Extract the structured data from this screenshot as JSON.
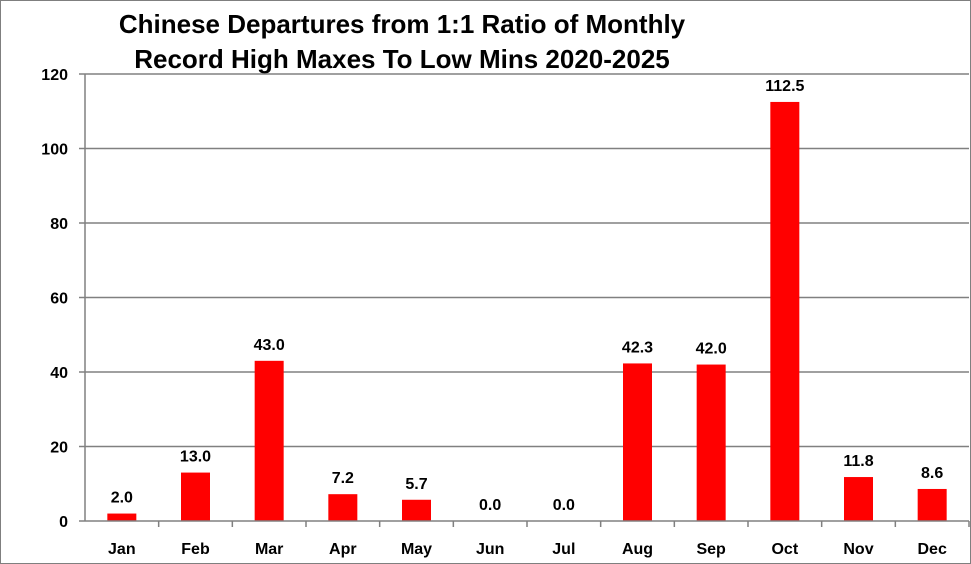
{
  "chart_data": {
    "type": "bar",
    "title_lines": [
      "Chinese Departures from 1:1 Ratio of Monthly",
      "Record High Maxes To Low Mins 2020-2025"
    ],
    "categories": [
      "Jan",
      "Feb",
      "Mar",
      "Apr",
      "May",
      "Jun",
      "Jul",
      "Aug",
      "Sep",
      "Oct",
      "Nov",
      "Dec"
    ],
    "values": [
      2.0,
      13.0,
      43.0,
      7.2,
      5.7,
      0.0,
      0.0,
      42.3,
      42.0,
      112.5,
      11.8,
      8.6
    ],
    "data_labels": [
      "2.0",
      "13.0",
      "43.0",
      "7.2",
      "5.7",
      "0.0",
      "0.0",
      "42.3",
      "42.0",
      "112.5",
      "11.8",
      "8.6"
    ],
    "xlabel": "",
    "ylabel": "",
    "ylim": [
      0,
      120
    ],
    "yticks": [
      0,
      20,
      40,
      60,
      80,
      100,
      120
    ],
    "grid": true,
    "legend": "none",
    "bar_color": "#ff0000",
    "grid_color": "#808080"
  }
}
